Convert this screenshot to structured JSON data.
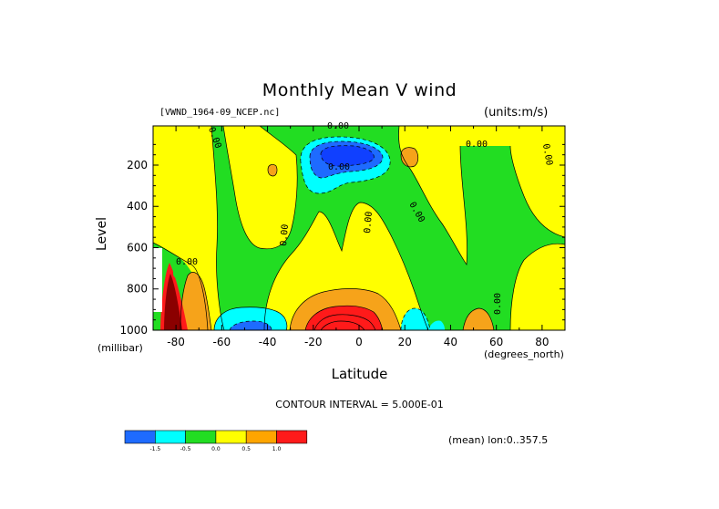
{
  "chart_data": {
    "type": "contour",
    "title": "Monthly Mean V wind",
    "source": "[VWND_1964-09_NCEP.nc]",
    "units": "(units:m/s)",
    "xlabel": "Latitude",
    "x_unit": "(degrees_north)",
    "ylabel": "Level",
    "y_unit": "(millibar)",
    "xlim": [
      -90,
      90
    ],
    "ylim": [
      1000,
      10
    ],
    "x_ticks": [
      "-80",
      "-60",
      "-40",
      "-20",
      "0",
      "20",
      "40",
      "60",
      "80"
    ],
    "y_ticks": [
      "200",
      "400",
      "600",
      "800",
      "1000"
    ],
    "contour_interval": "CONTOUR INTERVAL = 5.000E-01",
    "dimension_note": "(mean) lon:0..357.5",
    "contour_labels": [
      "0.00",
      "0.00",
      "0.00",
      "0.00",
      "0.00",
      "0.00",
      "0.00",
      "0.00",
      "0.00",
      "0.00",
      "0.00",
      "0.00"
    ],
    "colorbar": {
      "labels": [
        "-1.5",
        "-0.5",
        "0.0",
        "0.5",
        "1.0"
      ],
      "colors": [
        "#1e6bff",
        "#00ffff",
        "#22dd22",
        "#ffff00",
        "#ffa500",
        "#ff1a1a"
      ]
    },
    "palette": {
      "dark_blue": "#1040ff",
      "blue": "#1e6bff",
      "cyan": "#00ffff",
      "green": "#22dd22",
      "yellow": "#ffff00",
      "orange": "#f6a31a",
      "red": "#ff1a1a",
      "dark_red": "#8b0000"
    }
  }
}
